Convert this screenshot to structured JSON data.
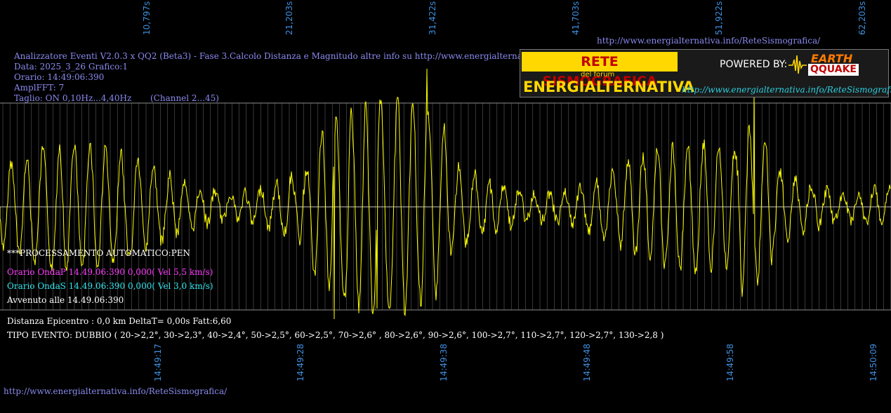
{
  "header": {
    "title_line": "Analizzatore Eventi V2.0.3 x QQ2 (Beta3) - Fase 3.Calcolo Distanza e Magnitudo altre info su http://www.energialternativa.info/ReteSism",
    "data_line": "Data: 2025_3_26 Grafico:1",
    "orario_line": "Orario: 14:49:06:390",
    "ampl_line": "AmplFFT: 7",
    "taglio_line": "Taglio: ON 0,10Hz...4,40Hz       (Channel 2...45)"
  },
  "top_url": "http://www.energialternativa.info/ReteSismografica/",
  "bottom_url": "http://www.energialternativa.info/ReteSismografica/",
  "logo": {
    "rete": "RETE SISMOGRAFICA",
    "forum": "del forum",
    "energ": "ENERGIALTERNATIVA",
    "powered": "POWERED BY:",
    "earth": "EARTH",
    "qquake": "QQUAKE",
    "url": "http://www.energialternativa.info/ReteSismografica"
  },
  "processing": {
    "auto": "***PROCESSAMENTO AUTOMATICO:PEN",
    "onda_p": "Orario OndaP 14.49.06:390  0,000( Vel 5,5 km/s)",
    "onda_s": "Orario OndaS 14.49.06:390  0,000( Vel 3,0 km/s)",
    "avvenuto": "Avvenuto alle 14.49.06:390"
  },
  "results": {
    "distanza": "Distanza Epicentro : 0,0 km DeltaT= 0,00s  Fatt:6,60",
    "tipo_evento": "TIPO EVENTO: DUBBIO ( 20->2,2°, 30->2,3°, 40->2,4°, 50->2,5°, 60->2,5°, 70->2,6° , 80->2,6°, 90->2,6°, 100->2,7°, 110->2,7°, 120->2,7°, 130->2,8 )"
  },
  "seconds_axis": [
    "10,797s",
    "21,203s",
    "31,422s",
    "41,703s",
    "51,922s",
    "62,203s"
  ],
  "time_axis": [
    "14:49:17",
    "14:49:28",
    "14:49:38",
    "14:49:48",
    "14:49:58",
    "14:50:09"
  ],
  "colors": {
    "trace": "#ffff00",
    "grid": "#6e6e6e",
    "info_text": "#8a8af0",
    "axis_labels": "#3d8fe0",
    "onda_p": "#ff3cff",
    "onda_s": "#34e6f0"
  }
}
